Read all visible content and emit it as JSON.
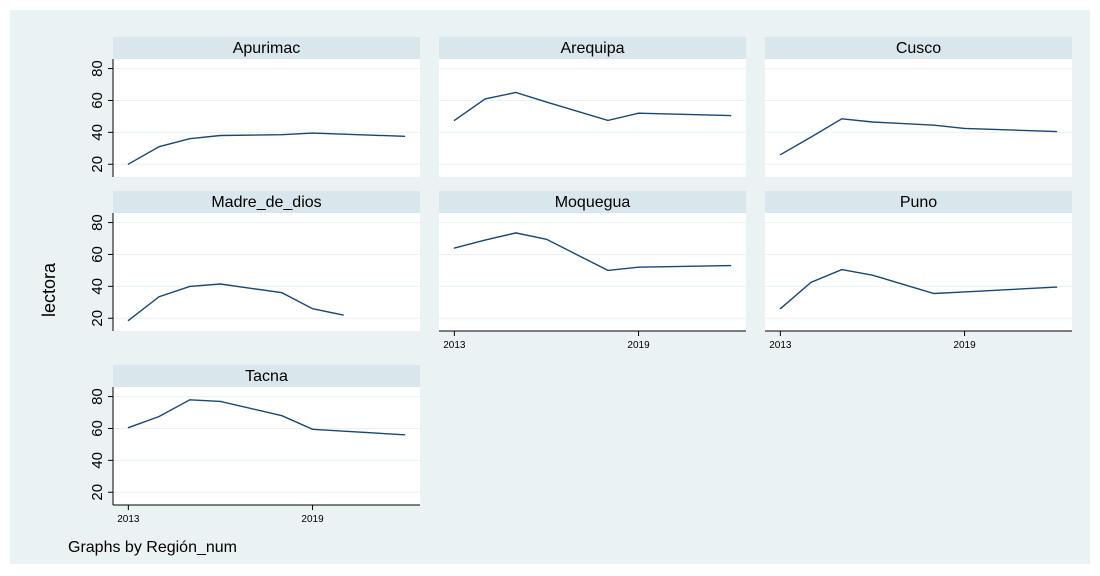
{
  "chart_data": {
    "type": "line",
    "ylabel": "lectora",
    "note": "Graphs by Región_num",
    "x_ticks": [
      2013,
      2019
    ],
    "y_ticks": [
      20,
      40,
      60,
      80
    ],
    "ylim": [
      12,
      86
    ],
    "xlim": [
      2012.5,
      2022.5
    ],
    "grid": true,
    "colors": {
      "outer_bg": "#eaf2f3",
      "plot_bg": "#ffffff",
      "strip_bg": "#d9e6eb",
      "line": "#1a476f",
      "grid": "#eaf2f3",
      "axis": "#000000"
    },
    "panels": [
      {
        "title": "Apurimac",
        "x": [
          2013,
          2014,
          2015,
          2016,
          2018,
          2019,
          2022
        ],
        "y": [
          20,
          31,
          36,
          38,
          38.5,
          39.5,
          37.5
        ]
      },
      {
        "title": "Arequipa",
        "x": [
          2013,
          2014,
          2015,
          2016,
          2018,
          2019,
          2022
        ],
        "y": [
          47.5,
          61,
          65,
          59,
          47.5,
          52,
          50.5
        ]
      },
      {
        "title": "Cusco",
        "x": [
          2013,
          2014,
          2015,
          2016,
          2018,
          2019,
          2022
        ],
        "y": [
          26,
          37,
          48.5,
          46.5,
          44.5,
          42.5,
          40.5
        ]
      },
      {
        "title": "Madre_de_dios",
        "x": [
          2013,
          2014,
          2015,
          2016,
          2018,
          2019,
          2020
        ],
        "y": [
          18.5,
          33.5,
          40,
          41.5,
          36,
          26,
          22
        ]
      },
      {
        "title": "Moquegua",
        "x": [
          2013,
          2014,
          2015,
          2016,
          2018,
          2019,
          2022
        ],
        "y": [
          64,
          69,
          73.5,
          69.5,
          50,
          52,
          53
        ]
      },
      {
        "title": "Puno",
        "x": [
          2013,
          2014,
          2015,
          2016,
          2018,
          2019,
          2022
        ],
        "y": [
          26,
          42.5,
          50.5,
          47,
          35.5,
          36.5,
          39.5
        ]
      },
      {
        "title": "Tacna",
        "x": [
          2013,
          2014,
          2015,
          2016,
          2018,
          2019,
          2022
        ],
        "y": [
          60.5,
          67.5,
          78,
          77,
          68,
          59.5,
          56
        ]
      }
    ]
  }
}
